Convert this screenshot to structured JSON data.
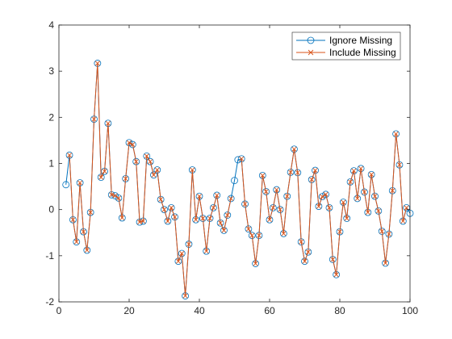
{
  "chart_data": {
    "type": "line",
    "title": "",
    "xlabel": "",
    "ylabel": "",
    "xlim": [
      0,
      100
    ],
    "ylim": [
      -2,
      4
    ],
    "xticks": [
      0,
      20,
      40,
      60,
      80,
      100
    ],
    "yticks": [
      -2,
      -1,
      0,
      1,
      2,
      3,
      4
    ],
    "grid": false,
    "legend_position": "top-right",
    "x": [
      2,
      3,
      4,
      5,
      6,
      7,
      8,
      9,
      10,
      11,
      12,
      13,
      14,
      15,
      16,
      17,
      18,
      19,
      20,
      21,
      22,
      23,
      24,
      25,
      26,
      27,
      28,
      29,
      30,
      31,
      32,
      33,
      34,
      35,
      36,
      37,
      38,
      39,
      40,
      41,
      42,
      43,
      44,
      45,
      46,
      47,
      48,
      49,
      50,
      51,
      52,
      53,
      54,
      55,
      56,
      57,
      58,
      59,
      60,
      61,
      62,
      63,
      64,
      65,
      66,
      67,
      68,
      69,
      70,
      71,
      72,
      73,
      74,
      75,
      76,
      77,
      78,
      79,
      80,
      81,
      82,
      83,
      84,
      85,
      86,
      87,
      88,
      89,
      90,
      91,
      92,
      93,
      94,
      95,
      96,
      97,
      98,
      99,
      100
    ],
    "series": [
      {
        "name": "Ignore Missing",
        "color": "#0072BD",
        "marker": "circle",
        "values": [
          0.54,
          1.18,
          -0.22,
          -0.7,
          0.58,
          -0.48,
          -0.88,
          -0.06,
          1.96,
          3.17,
          0.7,
          0.83,
          1.87,
          0.32,
          0.3,
          0.25,
          -0.18,
          0.67,
          1.45,
          1.41,
          1.04,
          -0.27,
          -0.25,
          1.16,
          1.04,
          0.75,
          0.86,
          0.22,
          0.0,
          -0.25,
          0.04,
          -0.16,
          -1.12,
          -0.95,
          -1.87,
          -0.75,
          0.86,
          -0.22,
          0.29,
          -0.19,
          -0.9,
          -0.19,
          0.04,
          0.31,
          -0.29,
          -0.45,
          -0.12,
          0.24,
          0.63,
          1.08,
          1.1,
          0.12,
          -0.42,
          -0.56,
          -1.17,
          -0.56,
          0.74,
          0.39,
          -0.22,
          0.04,
          0.43,
          0.0,
          -0.52,
          0.29,
          0.81,
          1.31,
          0.8,
          -0.7,
          -1.12,
          -0.92,
          0.65,
          0.85,
          0.07,
          0.28,
          0.33,
          0.04,
          -1.08,
          -1.41,
          -0.48,
          0.16,
          -0.19,
          0.6,
          0.84,
          0.24,
          0.89,
          0.38,
          -0.06,
          0.76,
          0.29,
          -0.03,
          -0.47,
          -1.16,
          -0.53,
          0.41,
          1.64,
          0.97,
          -0.25,
          0.04,
          -0.08
        ]
      },
      {
        "name": "Include Missing",
        "color": "#D95319",
        "marker": "x",
        "values": [
          null,
          1.18,
          -0.22,
          -0.7,
          0.58,
          -0.48,
          -0.88,
          -0.06,
          1.96,
          3.17,
          0.7,
          0.83,
          1.87,
          0.32,
          0.3,
          0.25,
          -0.18,
          0.67,
          1.45,
          1.41,
          1.04,
          -0.27,
          -0.25,
          1.16,
          1.04,
          0.75,
          0.86,
          0.22,
          0.0,
          -0.25,
          0.04,
          -0.16,
          -1.12,
          -0.95,
          -1.87,
          -0.75,
          0.86,
          -0.22,
          0.29,
          -0.19,
          -0.9,
          -0.19,
          0.04,
          0.31,
          -0.29,
          -0.45,
          -0.12,
          0.24,
          null,
          null,
          1.1,
          0.12,
          -0.42,
          -0.56,
          -1.17,
          -0.56,
          0.74,
          0.39,
          -0.22,
          0.04,
          0.43,
          0.0,
          -0.52,
          0.29,
          0.81,
          1.31,
          0.8,
          -0.7,
          -1.12,
          -0.92,
          0.65,
          0.85,
          0.07,
          0.28,
          0.33,
          0.04,
          -1.08,
          -1.41,
          -0.48,
          0.16,
          -0.19,
          0.6,
          0.84,
          0.24,
          0.89,
          0.38,
          -0.06,
          0.76,
          0.29,
          -0.03,
          -0.47,
          -1.16,
          -0.53,
          0.41,
          1.64,
          0.97,
          -0.25,
          0.04,
          null
        ]
      }
    ]
  }
}
